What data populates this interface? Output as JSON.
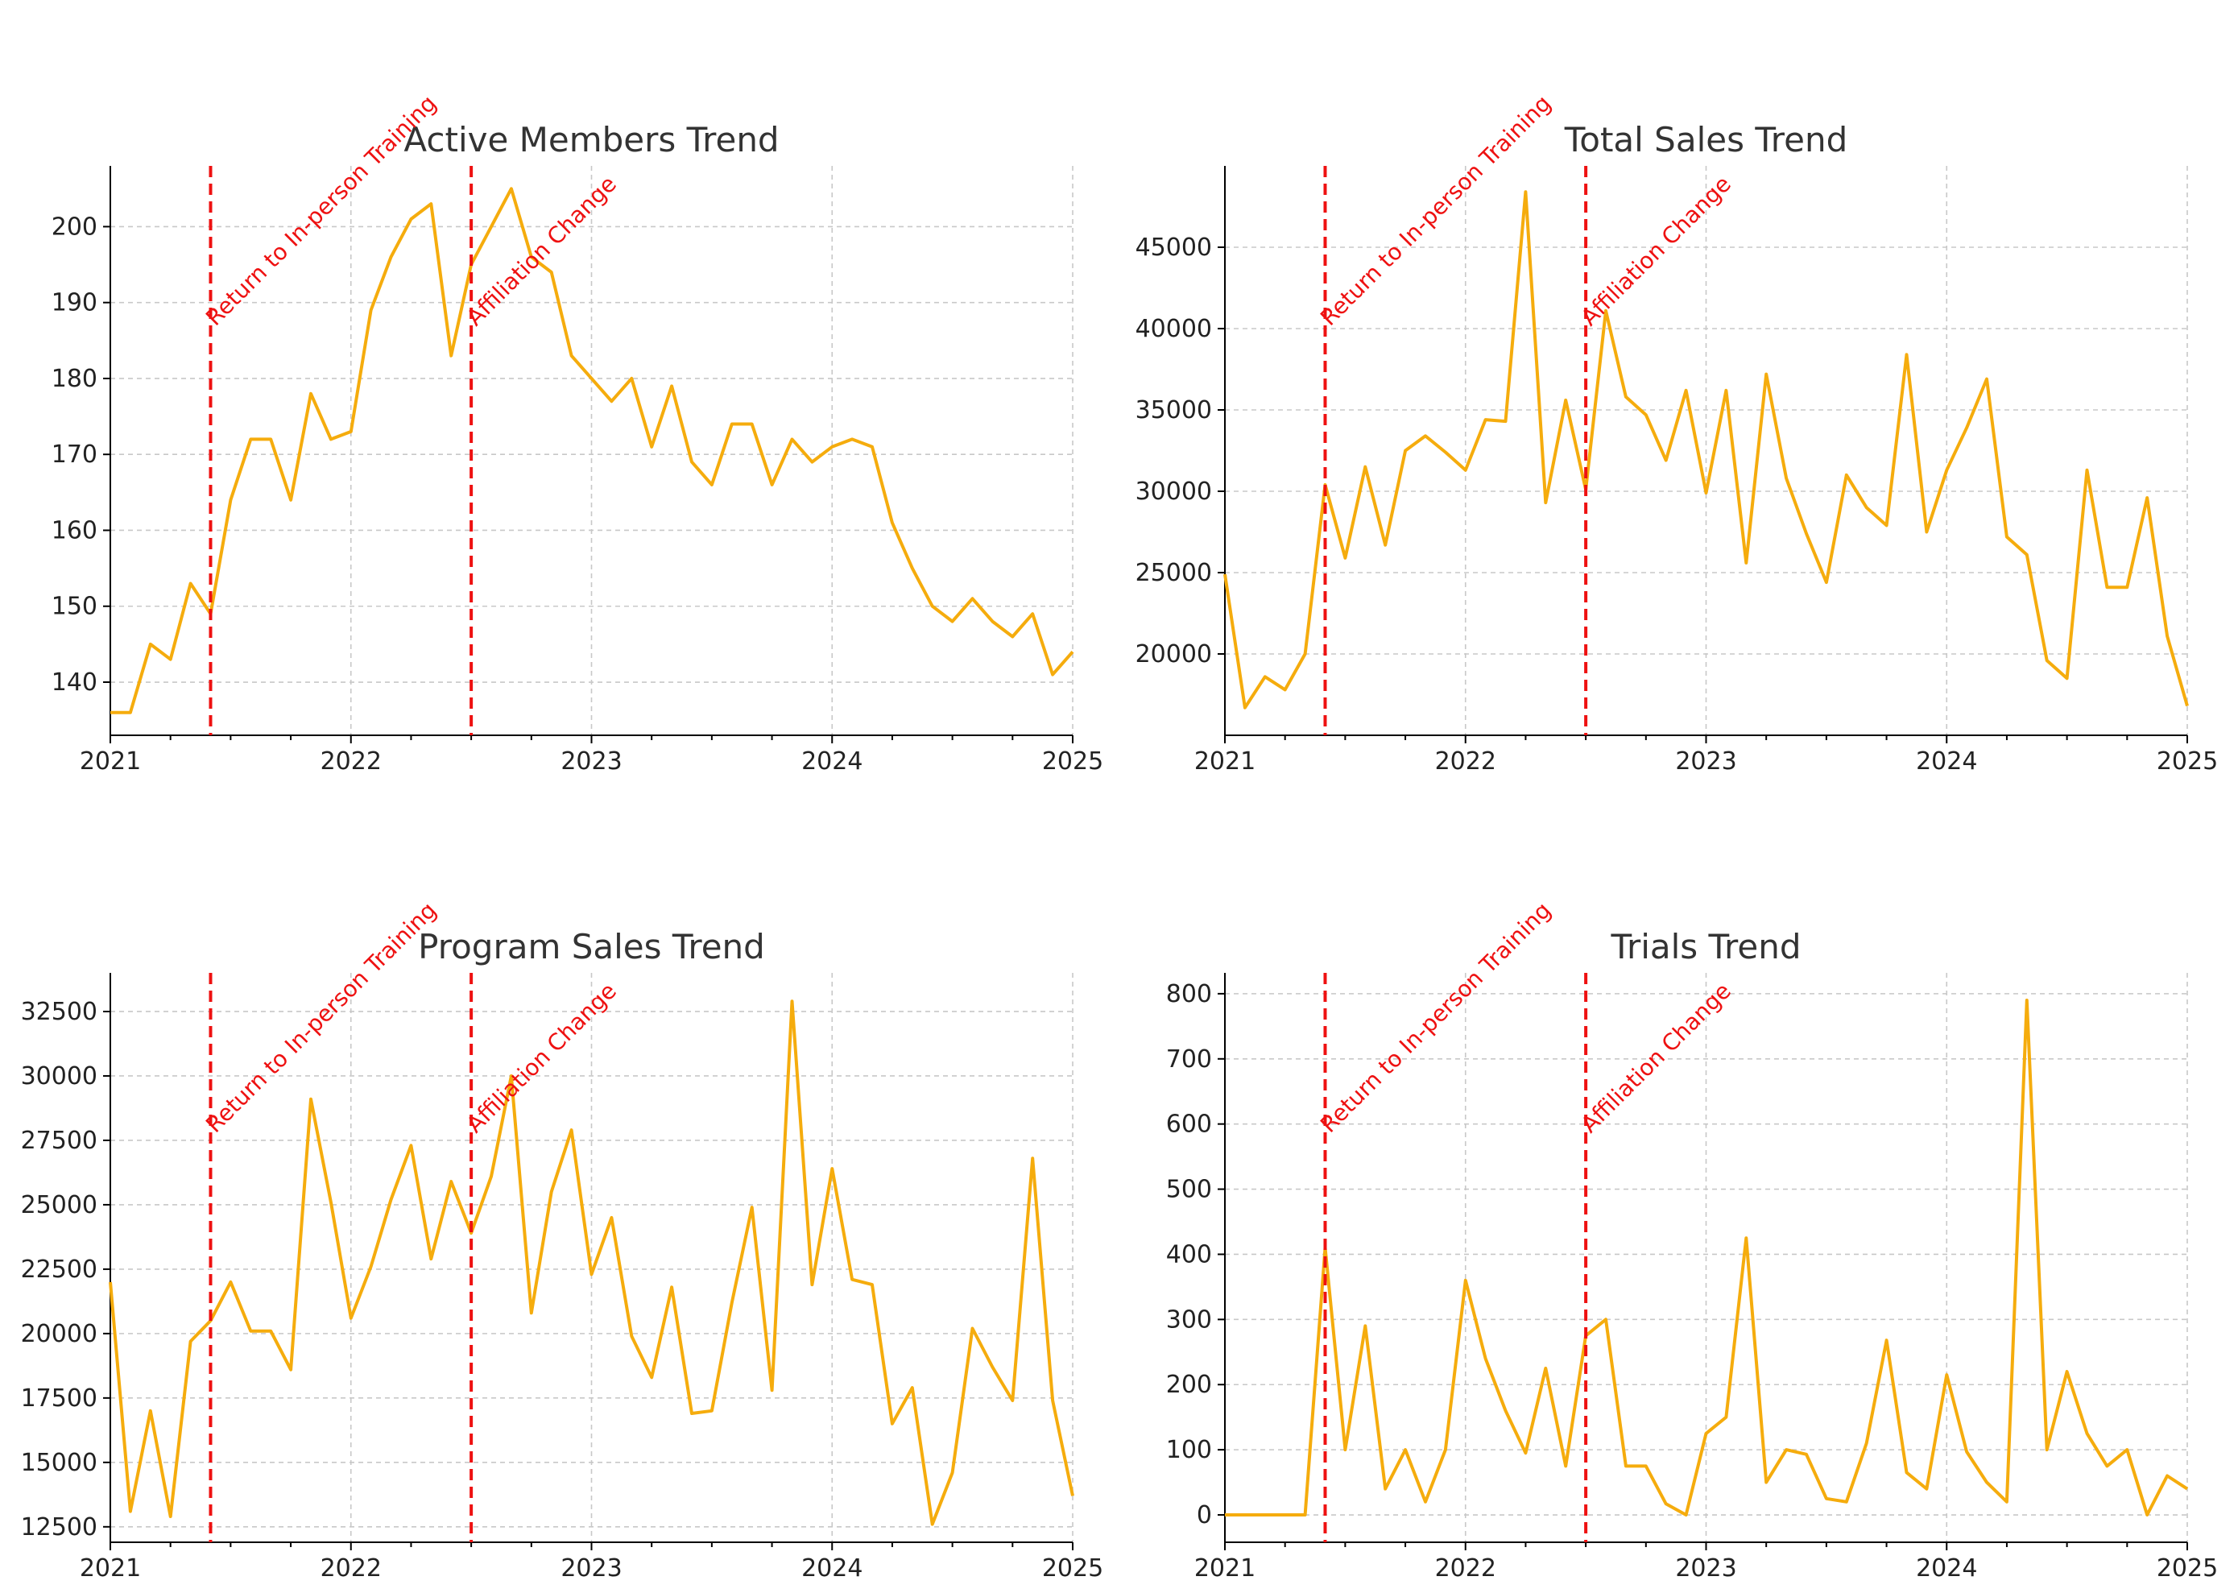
{
  "colors": {
    "series": "#f5ac0d",
    "event": "#ee1111",
    "grid": "#c8c8c8",
    "text": "#222222"
  },
  "x_axis_year_ticks": [
    "2021",
    "2022",
    "2023",
    "2024",
    "2025"
  ],
  "events": [
    {
      "label": "Return to In-person Training",
      "date": "2021-06"
    },
    {
      "label": "Affiliation Change",
      "date": "2022-07"
    }
  ],
  "chart_data": [
    {
      "type": "line",
      "title": "Active Members Trend",
      "xlabel": "",
      "ylabel": "",
      "xlim": [
        "2021-01",
        "2025-01"
      ],
      "ylim": [
        133,
        208
      ],
      "yticks": [
        140,
        150,
        160,
        170,
        180,
        190,
        200
      ],
      "grid": true,
      "x": [
        "2021-01",
        "2021-02",
        "2021-03",
        "2021-04",
        "2021-05",
        "2021-06",
        "2021-07",
        "2021-08",
        "2021-09",
        "2021-10",
        "2021-11",
        "2021-12",
        "2022-01",
        "2022-02",
        "2022-03",
        "2022-04",
        "2022-05",
        "2022-06",
        "2022-07",
        "2022-08",
        "2022-09",
        "2022-10",
        "2022-11",
        "2022-12",
        "2023-01",
        "2023-02",
        "2023-03",
        "2023-04",
        "2023-05",
        "2023-06",
        "2023-07",
        "2023-08",
        "2023-09",
        "2023-10",
        "2023-11",
        "2023-12",
        "2024-01",
        "2024-02",
        "2024-03",
        "2024-04",
        "2024-05",
        "2024-06",
        "2024-07",
        "2024-08",
        "2024-09",
        "2024-10",
        "2024-11",
        "2024-12",
        "2025-01"
      ],
      "values": [
        136,
        136,
        145,
        143,
        153,
        149,
        164,
        172,
        172,
        164,
        178,
        172,
        173,
        189,
        196,
        201,
        203,
        183,
        195,
        200,
        205,
        196,
        194,
        183,
        180,
        177,
        180,
        171,
        179,
        169,
        166,
        174,
        174,
        166,
        172,
        169,
        171,
        172,
        171,
        161,
        155,
        150,
        148,
        151,
        148,
        146,
        149,
        141,
        144
      ]
    },
    {
      "type": "line",
      "title": "Total Sales Trend",
      "xlabel": "",
      "ylabel": "",
      "xlim": [
        "2021-01",
        "2025-01"
      ],
      "ylim": [
        15000,
        50000
      ],
      "yticks": [
        20000,
        25000,
        30000,
        35000,
        40000,
        45000
      ],
      "grid": true,
      "x": [
        "2021-01",
        "2021-02",
        "2021-03",
        "2021-04",
        "2021-05",
        "2021-06",
        "2021-07",
        "2021-08",
        "2021-09",
        "2021-10",
        "2021-11",
        "2021-12",
        "2022-01",
        "2022-02",
        "2022-03",
        "2022-04",
        "2022-05",
        "2022-06",
        "2022-07",
        "2022-08",
        "2022-09",
        "2022-10",
        "2022-11",
        "2022-12",
        "2023-01",
        "2023-02",
        "2023-03",
        "2023-04",
        "2023-05",
        "2023-06",
        "2023-07",
        "2023-08",
        "2023-09",
        "2023-10",
        "2023-11",
        "2023-12",
        "2024-01",
        "2024-02",
        "2024-03",
        "2024-04",
        "2024-05",
        "2024-06",
        "2024-07",
        "2024-08",
        "2024-09",
        "2024-10",
        "2024-11",
        "2024-12",
        "2025-01"
      ],
      "values": [
        24900,
        16700,
        18600,
        17800,
        20000,
        30400,
        25900,
        31500,
        26700,
        32500,
        33400,
        32400,
        31300,
        34400,
        34300,
        48400,
        29300,
        35600,
        30100,
        41100,
        35800,
        34700,
        31900,
        36200,
        29900,
        36200,
        25600,
        37200,
        30800,
        27400,
        24400,
        31000,
        29000,
        27900,
        38400,
        27500,
        31300,
        33900,
        36900,
        27200,
        26100,
        19600,
        18500,
        31300,
        24100,
        24100,
        29600,
        21100,
        16800
      ]
    },
    {
      "type": "line",
      "title": "Program Sales Trend",
      "xlabel": "",
      "ylabel": "",
      "xlim": [
        "2021-01",
        "2025-01"
      ],
      "ylim": [
        11900,
        34000
      ],
      "yticks": [
        12500,
        15000,
        17500,
        20000,
        22500,
        25000,
        27500,
        30000,
        32500
      ],
      "grid": true,
      "x": [
        "2021-01",
        "2021-02",
        "2021-03",
        "2021-04",
        "2021-05",
        "2021-06",
        "2021-07",
        "2021-08",
        "2021-09",
        "2021-10",
        "2021-11",
        "2021-12",
        "2022-01",
        "2022-02",
        "2022-03",
        "2022-04",
        "2022-05",
        "2022-06",
        "2022-07",
        "2022-08",
        "2022-09",
        "2022-10",
        "2022-11",
        "2022-12",
        "2023-01",
        "2023-02",
        "2023-03",
        "2023-04",
        "2023-05",
        "2023-06",
        "2023-07",
        "2023-08",
        "2023-09",
        "2023-10",
        "2023-11",
        "2023-12",
        "2024-01",
        "2024-02",
        "2024-03",
        "2024-04",
        "2024-05",
        "2024-06",
        "2024-07",
        "2024-08",
        "2024-09",
        "2024-10",
        "2024-11",
        "2024-12",
        "2025-01"
      ],
      "values": [
        22000,
        13100,
        17000,
        12900,
        19700,
        20500,
        22000,
        20100,
        20100,
        18600,
        29100,
        25100,
        20600,
        22600,
        25200,
        27300,
        22900,
        25900,
        23900,
        26100,
        30000,
        20800,
        25500,
        27900,
        22300,
        24500,
        19900,
        18300,
        21800,
        16900,
        17000,
        21200,
        24900,
        17800,
        32900,
        21900,
        26400,
        22100,
        21900,
        16500,
        17900,
        12600,
        14600,
        20200,
        18700,
        17400,
        26800,
        17400,
        13700
      ]
    },
    {
      "type": "line",
      "title": "Trials Trend",
      "xlabel": "",
      "ylabel": "",
      "xlim": [
        "2021-01",
        "2025-01"
      ],
      "ylim": [
        -42,
        832
      ],
      "yticks": [
        0,
        100,
        200,
        300,
        400,
        500,
        600,
        700,
        800
      ],
      "grid": true,
      "x": [
        "2021-01",
        "2021-02",
        "2021-03",
        "2021-04",
        "2021-05",
        "2021-06",
        "2021-07",
        "2021-08",
        "2021-09",
        "2021-10",
        "2021-11",
        "2021-12",
        "2022-01",
        "2022-02",
        "2022-03",
        "2022-04",
        "2022-05",
        "2022-06",
        "2022-07",
        "2022-08",
        "2022-09",
        "2022-10",
        "2022-11",
        "2022-12",
        "2023-01",
        "2023-02",
        "2023-03",
        "2023-04",
        "2023-05",
        "2023-06",
        "2023-07",
        "2023-08",
        "2023-09",
        "2023-10",
        "2023-11",
        "2023-12",
        "2024-01",
        "2024-02",
        "2024-03",
        "2024-04",
        "2024-05",
        "2024-06",
        "2024-07",
        "2024-08",
        "2024-09",
        "2024-10",
        "2024-11",
        "2024-12",
        "2025-01"
      ],
      "values": [
        0,
        0,
        0,
        0,
        0,
        410,
        100,
        290,
        40,
        100,
        20,
        100,
        360,
        240,
        160,
        95,
        225,
        75,
        275,
        300,
        75,
        75,
        17,
        0,
        125,
        150,
        425,
        50,
        100,
        93,
        25,
        20,
        110,
        268,
        65,
        40,
        215,
        97,
        50,
        20,
        790,
        100,
        220,
        125,
        75,
        100,
        0,
        60,
        40
      ]
    }
  ]
}
